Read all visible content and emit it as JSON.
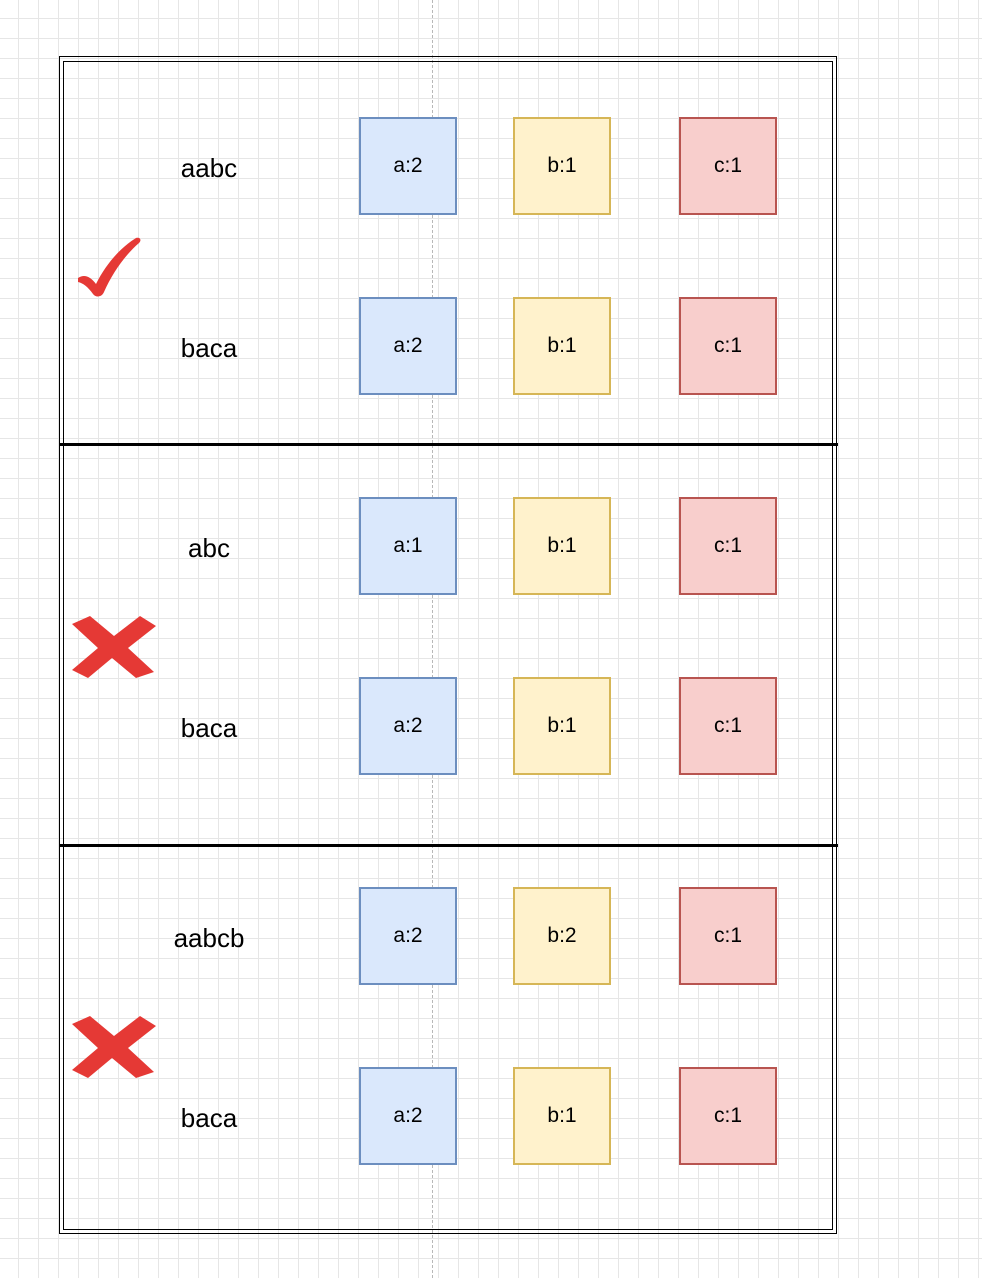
{
  "colors": {
    "a_fill": "#dae8fc",
    "a_stroke": "#6c8ebf",
    "b_fill": "#fff2cc",
    "b_stroke": "#d6b656",
    "c_fill": "#f8cecc",
    "c_stroke": "#b85450",
    "mark": "#e53935"
  },
  "groups": [
    {
      "mark": "check-icon",
      "rows": [
        {
          "word": "aabc",
          "counts": [
            "a:2",
            "b:1",
            "c:1"
          ]
        },
        {
          "word": "baca",
          "counts": [
            "a:2",
            "b:1",
            "c:1"
          ]
        }
      ]
    },
    {
      "mark": "cross-icon",
      "rows": [
        {
          "word": "abc",
          "counts": [
            "a:1",
            "b:1",
            "c:1"
          ]
        },
        {
          "word": "baca",
          "counts": [
            "a:2",
            "b:1",
            "c:1"
          ]
        }
      ]
    },
    {
      "mark": "cross-icon",
      "rows": [
        {
          "word": "aabcb",
          "counts": [
            "a:2",
            "b:2",
            "c:1"
          ]
        },
        {
          "word": "baca",
          "counts": [
            "a:2",
            "b:1",
            "c:1"
          ]
        }
      ]
    }
  ]
}
